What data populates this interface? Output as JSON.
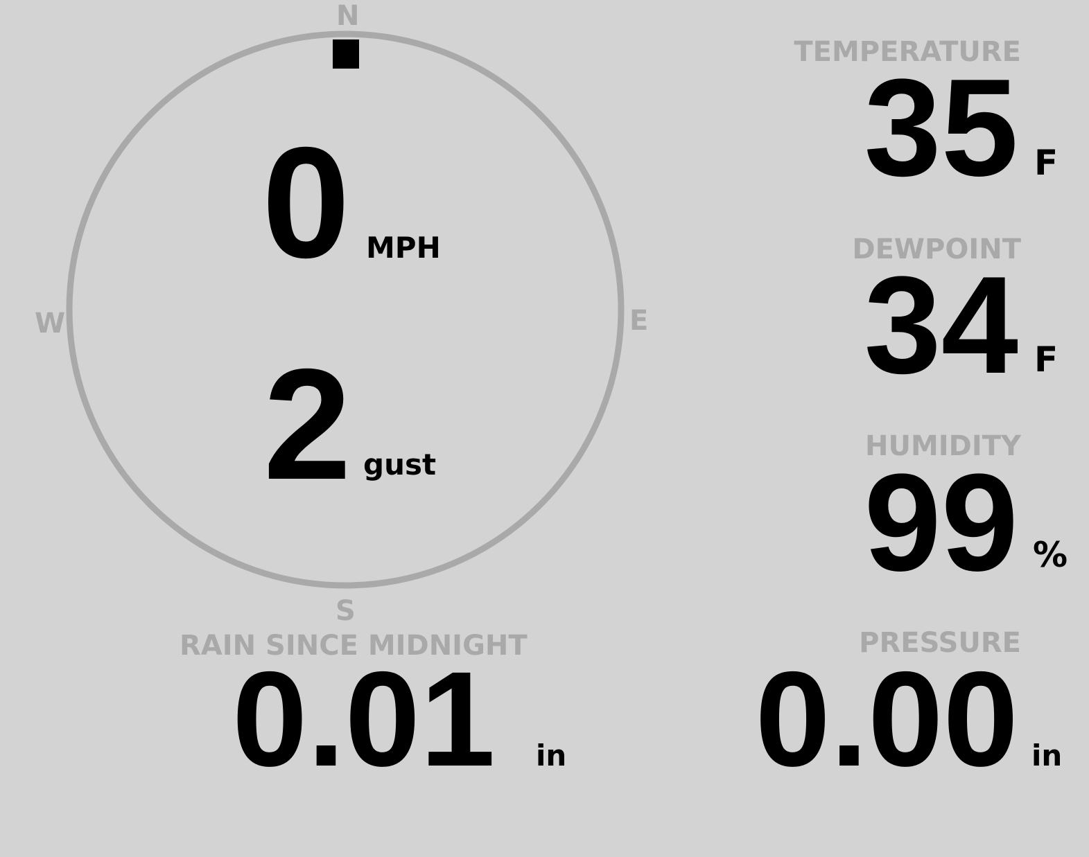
{
  "colors": {
    "background": "#d3d3d3",
    "label": "#a9a9a9",
    "value": "#000000"
  },
  "wind": {
    "compass": {
      "n": "N",
      "e": "E",
      "s": "S",
      "w": "W"
    },
    "direction_deg": 0,
    "speed": "0",
    "speed_unit": "MPH",
    "gust": "2",
    "gust_unit": "gust"
  },
  "rain": {
    "label": "RAIN SINCE MIDNIGHT",
    "value": "0.01",
    "unit": "in"
  },
  "temperature": {
    "label": "TEMPERATURE",
    "value": "35",
    "unit": "F"
  },
  "dewpoint": {
    "label": "DEWPOINT",
    "value": "34",
    "unit": "F"
  },
  "humidity": {
    "label": "HUMIDITY",
    "value": "99",
    "unit": "%"
  },
  "pressure": {
    "label": "PRESSURE",
    "value": "0.00",
    "unit": "in"
  }
}
